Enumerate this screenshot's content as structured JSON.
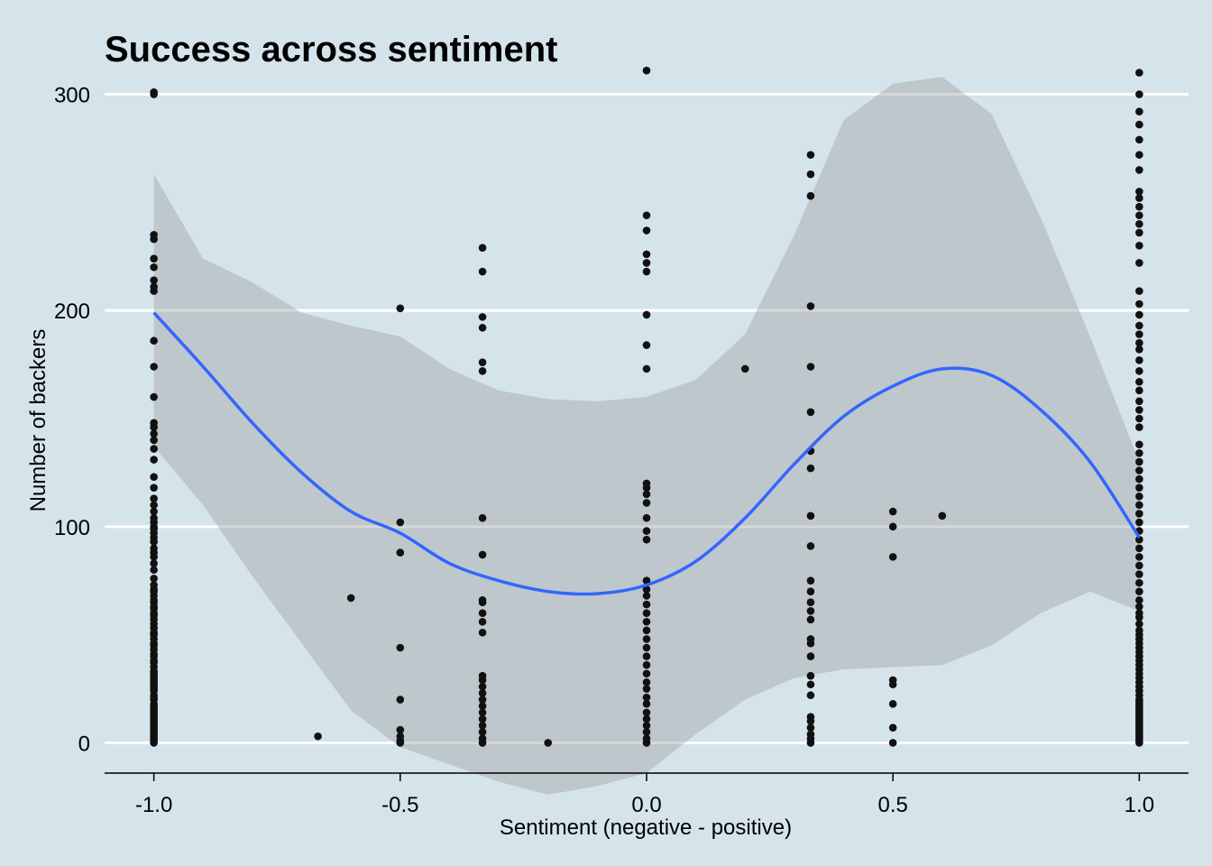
{
  "colors": {
    "background": "#d5e4eb",
    "grid": "#ffffff",
    "point": "#111111",
    "smooth_line": "#3366ff",
    "confidence_band": "#9a9a9a"
  },
  "chart_data": {
    "type": "scatter",
    "title": "Success across sentiment",
    "xlabel": "Sentiment (negative - positive)",
    "ylabel": "Number of backers",
    "xlim": [
      -1.1,
      1.1
    ],
    "ylim": [
      -14,
      314
    ],
    "x_ticks": [
      -1.0,
      -0.5,
      0.0,
      0.5,
      1.0
    ],
    "x_tick_labels": [
      "-1.0",
      "-0.5",
      "0.0",
      "0.5",
      "1.0"
    ],
    "y_ticks": [
      0,
      100,
      200,
      300
    ],
    "y_tick_labels": [
      "0",
      "100",
      "200",
      "300"
    ],
    "grid": "horizontal major lines",
    "legend": "none",
    "points": {
      "-1.0": [
        0,
        1,
        2,
        3,
        4,
        5,
        6,
        7,
        8,
        9,
        10,
        11,
        12,
        13,
        14,
        15,
        16,
        17,
        18,
        20,
        21,
        22,
        24,
        25,
        26,
        27,
        28,
        29,
        30,
        31,
        32,
        33,
        35,
        37,
        38,
        40,
        41,
        43,
        45,
        46,
        48,
        50,
        51,
        53,
        55,
        57,
        59,
        60,
        62,
        63,
        65,
        66,
        68,
        70,
        71,
        73,
        76,
        80,
        83,
        86,
        88,
        90,
        93,
        95,
        97,
        99,
        100,
        102,
        104,
        107,
        110,
        113,
        118,
        123,
        131,
        136,
        140,
        143,
        146,
        148,
        160,
        174,
        186,
        209,
        211,
        214,
        220,
        224,
        233,
        235,
        300,
        301
      ],
      "-0.667": [
        3
      ],
      "-0.6": [
        67
      ],
      "-0.5": [
        0,
        1,
        3,
        6,
        20,
        44,
        88,
        102,
        201
      ],
      "-0.333": [
        0,
        2,
        5,
        8,
        11,
        14,
        17,
        20,
        23,
        26,
        29,
        31,
        51,
        56,
        60,
        65,
        66,
        87,
        104,
        172,
        176,
        192,
        197,
        218,
        229
      ],
      "-0.2": [
        0
      ],
      "0.0": [
        0,
        2,
        5,
        8,
        11,
        14,
        18,
        21,
        25,
        28,
        32,
        36,
        40,
        44,
        48,
        52,
        56,
        60,
        64,
        68,
        71,
        75,
        94,
        98,
        104,
        111,
        115,
        118,
        120,
        173,
        184,
        198,
        218,
        222,
        226,
        237,
        244,
        311
      ],
      "0.2": [
        173
      ],
      "0.333": [
        0,
        2,
        4,
        7,
        10,
        12,
        22,
        27,
        31,
        40,
        46,
        48,
        57,
        61,
        65,
        70,
        75,
        91,
        105,
        127,
        135,
        153,
        174,
        202,
        253,
        263,
        272
      ],
      "0.5": [
        0,
        7,
        18,
        27,
        29,
        86,
        100,
        107
      ],
      "0.6": [
        105
      ],
      "1.0": [
        0,
        1,
        2,
        3,
        4,
        5,
        6,
        7,
        8,
        9,
        10,
        11,
        12,
        13,
        14,
        15,
        16,
        17,
        18,
        19,
        20,
        22,
        24,
        26,
        28,
        30,
        32,
        34,
        36,
        38,
        40,
        42,
        44,
        46,
        48,
        50,
        52,
        55,
        58,
        60,
        63,
        66,
        70,
        74,
        78,
        82,
        86,
        90,
        94,
        98,
        102,
        106,
        110,
        114,
        118,
        122,
        126,
        130,
        134,
        138,
        146,
        150,
        154,
        158,
        163,
        167,
        172,
        177,
        182,
        185,
        189,
        193,
        198,
        203,
        209,
        222,
        230,
        236,
        240,
        244,
        248,
        252,
        255,
        265,
        272,
        279,
        286,
        292,
        300,
        310
      ]
    },
    "smooth_fit": {
      "x": [
        -1.0,
        -0.9,
        -0.8,
        -0.7,
        -0.6,
        -0.5,
        -0.4,
        -0.3,
        -0.2,
        -0.1,
        0.0,
        0.1,
        0.2,
        0.3,
        0.4,
        0.5,
        0.6,
        0.7,
        0.8,
        0.9,
        1.0
      ],
      "y": [
        199,
        174,
        148,
        125,
        107,
        97,
        83,
        75,
        70,
        69,
        73,
        84,
        104,
        129,
        151,
        165,
        173,
        170,
        154,
        130,
        95
      ],
      "ci_low": [
        137,
        110,
        77,
        46,
        15,
        -2,
        -10,
        -18,
        -24,
        -20,
        -14,
        4,
        20,
        30,
        34,
        35,
        36,
        45,
        60,
        70,
        61
      ],
      "ci_high": [
        263,
        224,
        213,
        199,
        193,
        188,
        173,
        163,
        159,
        158,
        160,
        168,
        189,
        235,
        288,
        305,
        308,
        291,
        243,
        188,
        130
      ]
    }
  }
}
